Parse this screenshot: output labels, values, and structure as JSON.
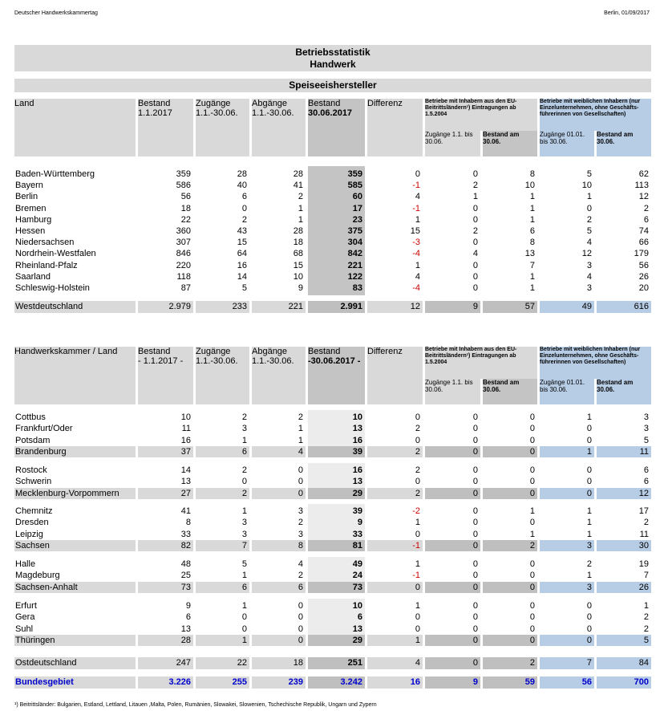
{
  "header": {
    "left": "Deutscher Handwerkskammertag",
    "right": "Berlin, 01/09/2017"
  },
  "title": {
    "line1": "Betriebsstatistik",
    "line2": "Handwerk",
    "subtitle": "Speiseeishersteller"
  },
  "table1": {
    "col_land": "Land",
    "h_bestand1": "Bestand",
    "h_bestand1_sub": "1.1.2017",
    "h_zugaenge": "Zugänge",
    "h_zugaenge_sub": "1.1.-30.06.",
    "h_abgaenge": "Abgänge",
    "h_abgaenge_sub": "1.1.-30.06.",
    "h_bestand2": "Bestand",
    "h_bestand2_sub": "30.06.2017",
    "h_differenz": "Differenz",
    "eu_title": "Betriebe mit Inhabern aus den EU-Beitrittsländern¹) Eintragungen ab 1.5.2004",
    "eu_zug": "Zugänge 1.1. bis 30.06.",
    "eu_bestand": "Bestand am 30.06.",
    "fem_title": "Betriebe mit weiblichen Inhabern (nur Einzelunternehmen, ohne Geschäfts-führerinnen von Gesellschaften)",
    "fem_zug": "Zugänge 01.01. bis 30.06.",
    "fem_bestand": "Bestand am 30.06.",
    "rows": [
      [
        "Baden-Württemberg",
        "359",
        "28",
        "28",
        "359",
        "0",
        "0",
        "8",
        "5",
        "62"
      ],
      [
        "Bayern",
        "586",
        "40",
        "41",
        "585",
        "-1",
        "2",
        "10",
        "10",
        "113"
      ],
      [
        "Berlin",
        "56",
        "6",
        "2",
        "60",
        "4",
        "1",
        "1",
        "1",
        "12"
      ],
      [
        "Bremen",
        "18",
        "0",
        "1",
        "17",
        "-1",
        "0",
        "1",
        "0",
        "2"
      ],
      [
        "Hamburg",
        "22",
        "2",
        "1",
        "23",
        "1",
        "0",
        "1",
        "2",
        "6"
      ],
      [
        "Hessen",
        "360",
        "43",
        "28",
        "375",
        "15",
        "2",
        "6",
        "5",
        "74"
      ],
      [
        "Niedersachsen",
        "307",
        "15",
        "18",
        "304",
        "-3",
        "0",
        "8",
        "4",
        "66"
      ],
      [
        "Nordrhein-Westfalen",
        "846",
        "64",
        "68",
        "842",
        "-4",
        "4",
        "13",
        "12",
        "179"
      ],
      [
        "Rheinland-Pfalz",
        "220",
        "16",
        "15",
        "221",
        "1",
        "0",
        "7",
        "3",
        "56"
      ],
      [
        "Saarland",
        "118",
        "14",
        "10",
        "122",
        "4",
        "0",
        "1",
        "4",
        "26"
      ],
      [
        "Schleswig-Holstein",
        "87",
        "5",
        "9",
        "83",
        "-4",
        "0",
        "1",
        "3",
        "20"
      ]
    ],
    "total": [
      "Westdeutschland",
      "2.979",
      "233",
      "221",
      "2.991",
      "12",
      "9",
      "57",
      "49",
      "616"
    ]
  },
  "table2": {
    "col_land": "Handwerkskammer / Land",
    "h_bestand1": "Bestand",
    "h_bestand1_sub": "- 1.1.2017 -",
    "h_zugaenge": "Zugänge",
    "h_zugaenge_sub": "1.1.-30.06.",
    "h_abgaenge": "Abgänge",
    "h_abgaenge_sub": "1.1.-30.06.",
    "h_bestand2": "Bestand",
    "h_bestand2_sub": "-30.06.2017 -",
    "h_differenz": "Differenz",
    "eu_title": "Betriebe mit Inhabern aus den EU-Beitrittsländern¹) Eintragungen ab 1.5.2004",
    "eu_zug": "Zugänge 1.1. bis 30.06.",
    "eu_bestand": "Bestand am 30.06.",
    "fem_title": "Betriebe mit weiblichen Inhabern (nur Einzelunternehmen, ohne Geschäfts-führerinnen von Gesellschaften)",
    "fem_zug": "Zugänge 01.01. bis 30.06.",
    "fem_bestand": "Bestand am 30.06.",
    "groups": [
      {
        "rows": [
          [
            "Cottbus",
            "10",
            "2",
            "2",
            "10",
            "0",
            "0",
            "0",
            "1",
            "3"
          ],
          [
            "Frankfurt/Oder",
            "11",
            "3",
            "1",
            "13",
            "2",
            "0",
            "0",
            "0",
            "3"
          ],
          [
            "Potsdam",
            "16",
            "1",
            "1",
            "16",
            "0",
            "0",
            "0",
            "0",
            "5"
          ]
        ],
        "sum": [
          "Brandenburg",
          "37",
          "6",
          "4",
          "39",
          "2",
          "0",
          "0",
          "1",
          "11"
        ]
      },
      {
        "rows": [
          [
            "Rostock",
            "14",
            "2",
            "0",
            "16",
            "2",
            "0",
            "0",
            "0",
            "6"
          ],
          [
            "Schwerin",
            "13",
            "0",
            "0",
            "13",
            "0",
            "0",
            "0",
            "0",
            "6"
          ]
        ],
        "sum": [
          "Mecklenburg-Vorpommern",
          "27",
          "2",
          "0",
          "29",
          "2",
          "0",
          "0",
          "0",
          "12"
        ]
      },
      {
        "rows": [
          [
            "Chemnitz",
            "41",
            "1",
            "3",
            "39",
            "-2",
            "0",
            "1",
            "1",
            "17"
          ],
          [
            "Dresden",
            "8",
            "3",
            "2",
            "9",
            "1",
            "0",
            "0",
            "1",
            "2"
          ],
          [
            "Leipzig",
            "33",
            "3",
            "3",
            "33",
            "0",
            "0",
            "1",
            "1",
            "11"
          ]
        ],
        "sum": [
          "Sachsen",
          "82",
          "7",
          "8",
          "81",
          "-1",
          "0",
          "2",
          "3",
          "30"
        ]
      },
      {
        "rows": [
          [
            "Halle",
            "48",
            "5",
            "4",
            "49",
            "1",
            "0",
            "0",
            "2",
            "19"
          ],
          [
            "Magdeburg",
            "25",
            "1",
            "2",
            "24",
            "-1",
            "0",
            "0",
            "1",
            "7"
          ]
        ],
        "sum": [
          "Sachsen-Anhalt",
          "73",
          "6",
          "6",
          "73",
          "0",
          "0",
          "0",
          "3",
          "26"
        ]
      },
      {
        "rows": [
          [
            "Erfurt",
            "9",
            "1",
            "0",
            "10",
            "1",
            "0",
            "0",
            "0",
            "1"
          ],
          [
            "Gera",
            "6",
            "0",
            "0",
            "6",
            "0",
            "0",
            "0",
            "0",
            "2"
          ],
          [
            "Suhl",
            "13",
            "0",
            "0",
            "13",
            "0",
            "0",
            "0",
            "0",
            "2"
          ]
        ],
        "sum": [
          "Thüringen",
          "28",
          "1",
          "0",
          "29",
          "1",
          "0",
          "0",
          "0",
          "5"
        ]
      }
    ],
    "total": [
      "Ostdeutschland",
      "247",
      "22",
      "18",
      "251",
      "4",
      "0",
      "2",
      "7",
      "84"
    ],
    "grand": [
      "Bundesgebiet",
      "3.226",
      "255",
      "239",
      "3.242",
      "16",
      "9",
      "59",
      "56",
      "700"
    ]
  },
  "footnote": "¹) Beitrittsländer:  Bulgarien, Estland, Lettland, Litauen ,Malta, Polen, Rumänien, Slowakei, Slowenien, Tschechische Republik, Ungarn und Zypern"
}
